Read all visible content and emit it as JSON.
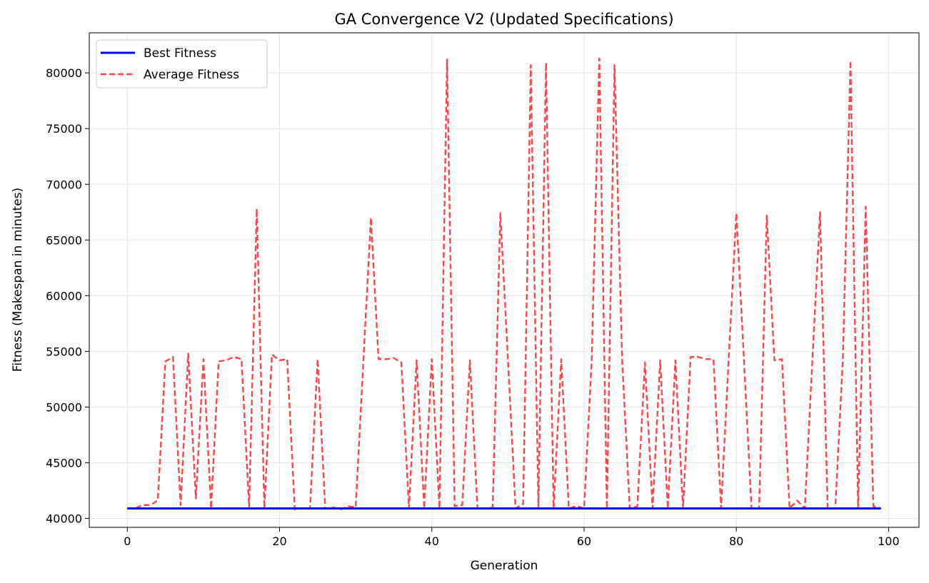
{
  "chart_data": {
    "type": "line",
    "title": "GA Convergence V2 (Updated Specifications)",
    "xlabel": "Generation",
    "ylabel": "Fitness (Makespan in minutes)",
    "xlim": [
      -5,
      104
    ],
    "ylim": [
      39200,
      83600
    ],
    "xticks": [
      0,
      20,
      40,
      60,
      80,
      100
    ],
    "yticks": [
      40000,
      45000,
      50000,
      55000,
      60000,
      65000,
      70000,
      75000,
      80000
    ],
    "grid": true,
    "legend_position": "top-left",
    "series": [
      {
        "name": "Best Fitness",
        "color": "#0000ff",
        "style": "solid",
        "x": [
          0,
          99
        ],
        "y": [
          40900,
          40900
        ]
      },
      {
        "name": "Average Fitness",
        "color": "#ff4444",
        "style": "dashed",
        "x": [
          0,
          1,
          2,
          3,
          4,
          5,
          6,
          7,
          8,
          9,
          10,
          11,
          12,
          13,
          14,
          15,
          16,
          17,
          18,
          19,
          20,
          21,
          22,
          23,
          24,
          25,
          26,
          27,
          28,
          29,
          30,
          31,
          32,
          33,
          34,
          35,
          36,
          37,
          38,
          39,
          40,
          41,
          42,
          43,
          44,
          45,
          46,
          47,
          48,
          49,
          50,
          51,
          52,
          53,
          54,
          55,
          56,
          57,
          58,
          59,
          60,
          61,
          62,
          63,
          64,
          65,
          66,
          67,
          68,
          69,
          70,
          71,
          72,
          73,
          74,
          75,
          76,
          77,
          78,
          79,
          80,
          81,
          82,
          83,
          84,
          85,
          86,
          87,
          88,
          89,
          90,
          91,
          92,
          93,
          94,
          95,
          96,
          97,
          98,
          99
        ],
        "y": [
          40900,
          40900,
          41200,
          41200,
          41600,
          54100,
          54500,
          41200,
          54800,
          41800,
          54300,
          40900,
          54100,
          54200,
          54500,
          54300,
          41000,
          67800,
          40900,
          54700,
          54200,
          54300,
          40800,
          40900,
          40900,
          54300,
          40900,
          41000,
          40800,
          41100,
          41000,
          54000,
          67000,
          54300,
          54300,
          54400,
          54000,
          40900,
          54200,
          40900,
          54300,
          40900,
          81200,
          41100,
          41200,
          54200,
          40900,
          40900,
          41000,
          67400,
          54300,
          40900,
          41300,
          80700,
          41000,
          80900,
          40900,
          54300,
          40900,
          41100,
          40900,
          54200,
          81300,
          40900,
          80700,
          54300,
          40900,
          41100,
          54000,
          40900,
          54200,
          40900,
          54200,
          40900,
          54500,
          54500,
          54300,
          54300,
          40900,
          54300,
          67400,
          54300,
          40900,
          40900,
          67200,
          54200,
          54300,
          40900,
          41600,
          40900,
          54300,
          67500,
          40900,
          40900,
          54300,
          81100,
          40900,
          68000,
          41100,
          40900
        ]
      }
    ]
  }
}
